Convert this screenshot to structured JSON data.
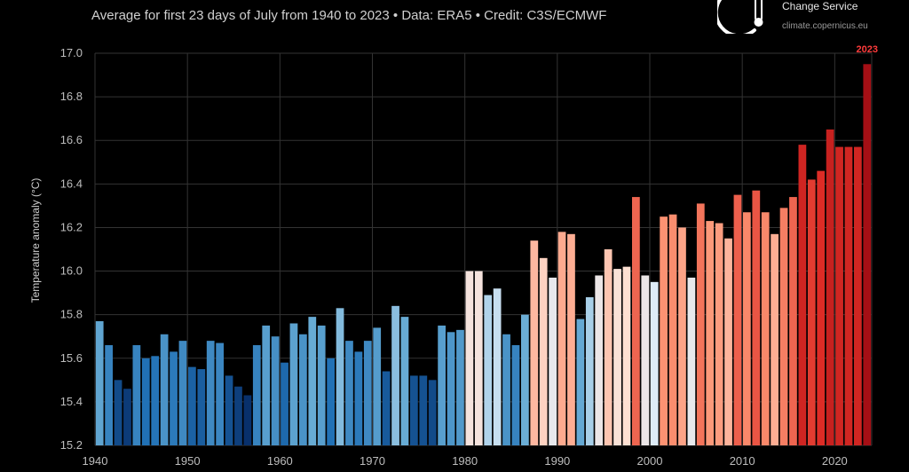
{
  "header": {
    "subtitle": "Average for first 23 days of July from 1940 to 2023 • Data: ERA5 • Credit: C3S/ECMWF",
    "brand_service": "Change Service",
    "brand_url": "climate.copernicus.eu"
  },
  "chart_data": {
    "type": "bar",
    "ylabel": "Temperature anomaly (°C)",
    "ylim": [
      15.2,
      17.0
    ],
    "yticks": [
      15.2,
      15.4,
      15.6,
      15.8,
      16.0,
      16.2,
      16.4,
      16.6,
      16.8,
      17.0
    ],
    "ytick_labels": [
      "15.2",
      "15.4",
      "15.6",
      "15.8",
      "16.0",
      "16.2",
      "16.4",
      "16.6",
      "16.8",
      "17.0"
    ],
    "xticks": [
      1940,
      1950,
      1960,
      1970,
      1980,
      1990,
      2000,
      2010,
      2020
    ],
    "xtick_labels": [
      "1940",
      "1950",
      "1960",
      "1970",
      "1980",
      "1990",
      "2000",
      "2010",
      "2020"
    ],
    "grid": true,
    "highlight_label": "2023",
    "categories": [
      1940,
      1941,
      1942,
      1943,
      1944,
      1945,
      1946,
      1947,
      1948,
      1949,
      1950,
      1951,
      1952,
      1953,
      1954,
      1955,
      1956,
      1957,
      1958,
      1959,
      1960,
      1961,
      1962,
      1963,
      1964,
      1965,
      1966,
      1967,
      1968,
      1969,
      1970,
      1971,
      1972,
      1973,
      1974,
      1975,
      1976,
      1977,
      1978,
      1979,
      1980,
      1981,
      1982,
      1983,
      1984,
      1985,
      1986,
      1987,
      1988,
      1989,
      1990,
      1991,
      1992,
      1993,
      1994,
      1995,
      1996,
      1997,
      1998,
      1999,
      2000,
      2001,
      2002,
      2003,
      2004,
      2005,
      2006,
      2007,
      2008,
      2009,
      2010,
      2011,
      2012,
      2013,
      2014,
      2015,
      2016,
      2017,
      2018,
      2019,
      2020,
      2021,
      2022,
      2023
    ],
    "values": [
      15.77,
      15.66,
      15.5,
      15.46,
      15.66,
      15.6,
      15.61,
      15.71,
      15.63,
      15.68,
      15.56,
      15.55,
      15.68,
      15.67,
      15.52,
      15.47,
      15.43,
      15.66,
      15.75,
      15.7,
      15.58,
      15.76,
      15.71,
      15.79,
      15.75,
      15.6,
      15.83,
      15.68,
      15.63,
      15.68,
      15.74,
      15.54,
      15.84,
      15.79,
      15.52,
      15.52,
      15.5,
      15.75,
      15.72,
      15.73,
      16.0,
      16.0,
      15.89,
      15.92,
      15.71,
      15.66,
      15.8,
      16.14,
      16.06,
      15.97,
      16.18,
      16.17,
      15.78,
      15.88,
      15.98,
      16.1,
      16.01,
      16.02,
      16.34,
      15.98,
      15.95,
      16.25,
      16.26,
      16.2,
      15.97,
      16.31,
      16.23,
      16.22,
      16.15,
      16.35,
      16.27,
      16.37,
      16.27,
      16.17,
      16.29,
      16.34,
      16.58,
      16.42,
      16.46,
      16.65,
      16.57,
      16.57,
      16.57,
      16.95
    ]
  }
}
